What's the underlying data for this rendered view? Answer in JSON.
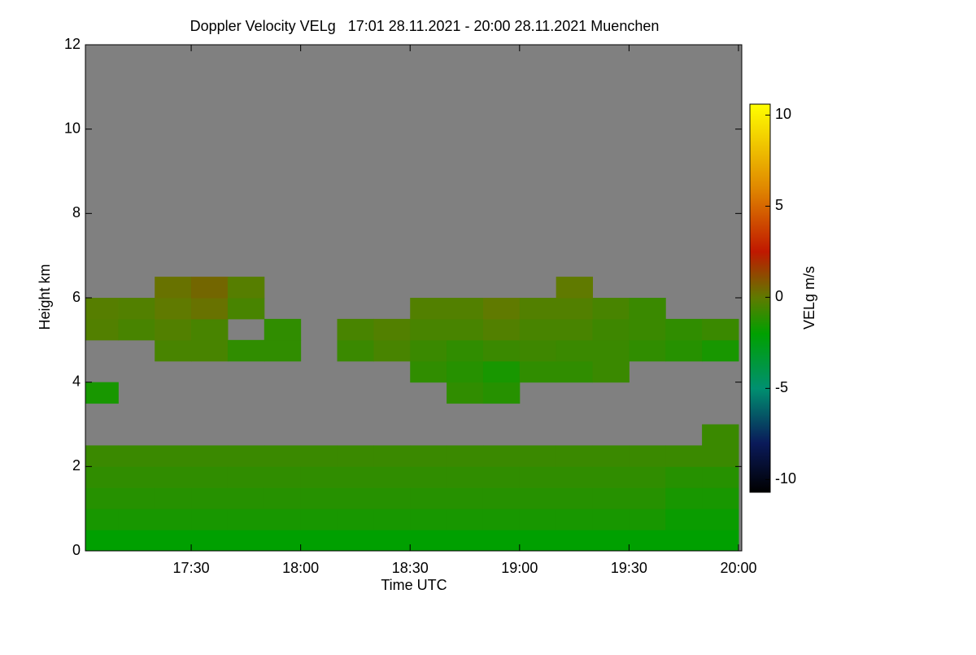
{
  "chart_data": {
    "type": "heatmap",
    "title": "Doppler Velocity VELg   17:01 28.11.2021 - 20:00 28.11.2021 Muenchen",
    "x_label": "Time UTC",
    "y_label": "Height km",
    "colorbar_label": "VELg m/s",
    "background": "#808080",
    "xlim": [
      17.0167,
      20.015
    ],
    "xticks": [
      {
        "value": 17.5,
        "label": "17:30"
      },
      {
        "value": 18,
        "label": "18:00"
      },
      {
        "value": 18.5,
        "label": "18:30"
      },
      {
        "value": 19,
        "label": "19:00"
      },
      {
        "value": 19.5,
        "label": "19:30"
      },
      {
        "value": 20,
        "label": "20:00"
      }
    ],
    "ylim": [
      0,
      12
    ],
    "yticks": [
      0,
      2,
      4,
      6,
      8,
      10,
      12
    ],
    "zlim": [
      -10.7,
      10.6
    ],
    "zticks": [
      -10,
      -5,
      0,
      5,
      10
    ],
    "colormap": [
      {
        "value": -10.7,
        "color": "#000000"
      },
      {
        "value": -8,
        "color": "#0a1a5a"
      },
      {
        "value": -5,
        "color": "#009070"
      },
      {
        "value": -2,
        "color": "#00a000"
      },
      {
        "value": 0,
        "color": "#607a00"
      },
      {
        "value": 2.5,
        "color": "#c01800"
      },
      {
        "value": 6,
        "color": "#e08800"
      },
      {
        "value": 10.6,
        "color": "#ffff00"
      }
    ],
    "x_edges": [
      17.0167,
      17.1667,
      17.3333,
      17.5,
      17.6667,
      17.8333,
      18.0,
      18.1667,
      18.3333,
      18.5,
      18.6667,
      18.8333,
      19.0,
      19.1667,
      19.3333,
      19.5,
      19.6667,
      19.8333,
      20.0
    ],
    "y_edges": [
      0,
      0.5,
      1,
      1.5,
      2,
      2.5,
      3,
      3.5,
      4,
      4.5,
      5,
      5.5,
      6,
      6.5,
      7,
      7.5,
      8,
      8.5,
      9,
      9.5,
      10,
      10.5,
      11,
      11.5,
      12
    ],
    "z": [
      [
        -2,
        -2,
        -2,
        -2,
        -2,
        -2,
        -2,
        -2,
        -2,
        -2,
        -2,
        -2,
        -2,
        -2,
        -2,
        -2,
        -2,
        -2
      ],
      [
        -1.5,
        -1.5,
        -1.5,
        -1.5,
        -1.5,
        -1.5,
        -1.5,
        -1.5,
        -1.5,
        -1.5,
        -1.5,
        -1.5,
        -1.5,
        -1.5,
        -1.5,
        -1.5,
        -1.8,
        -1.8
      ],
      [
        -1.2,
        -1.2,
        -1.2,
        -1.2,
        -1.2,
        -1.2,
        -1.2,
        -1.2,
        -1.2,
        -1.2,
        -1.2,
        -1.2,
        -1.2,
        -1.2,
        -1.2,
        -1.2,
        -1.5,
        -1.5
      ],
      [
        -1,
        -1,
        -1,
        -1,
        -1,
        -1,
        -1,
        -1,
        -1,
        -1,
        -1,
        -1,
        -1,
        -1,
        -1,
        -1,
        -1.2,
        -1.2
      ],
      [
        -0.8,
        -0.8,
        -0.8,
        -0.8,
        -0.8,
        -0.8,
        -0.8,
        -0.8,
        -0.8,
        -0.8,
        -0.8,
        -0.8,
        -0.8,
        -0.8,
        -0.8,
        -0.8,
        -0.8,
        -0.8
      ],
      [
        null,
        null,
        null,
        null,
        null,
        null,
        null,
        null,
        null,
        null,
        null,
        null,
        null,
        null,
        null,
        null,
        null,
        -0.8
      ],
      [
        null,
        null,
        null,
        null,
        null,
        null,
        null,
        null,
        null,
        null,
        null,
        null,
        null,
        null,
        null,
        null,
        null,
        null
      ],
      [
        -1.5,
        null,
        null,
        null,
        null,
        null,
        null,
        null,
        null,
        null,
        -1,
        -1.2,
        null,
        null,
        null,
        null,
        null,
        null
      ],
      [
        null,
        null,
        null,
        null,
        null,
        null,
        null,
        null,
        null,
        -1,
        -1.2,
        -1.5,
        -1,
        -1,
        -0.8,
        null,
        null,
        null
      ],
      [
        null,
        null,
        -0.5,
        -0.5,
        -1,
        -1,
        null,
        -0.8,
        -0.5,
        -0.8,
        -1,
        -0.8,
        -0.7,
        -0.8,
        -0.8,
        -1,
        -1.2,
        -1.5
      ],
      [
        -0.3,
        -0.5,
        -0.3,
        -0.5,
        null,
        -1,
        null,
        -0.5,
        -0.3,
        -0.5,
        -0.5,
        -0.3,
        -0.5,
        -0.5,
        -0.7,
        -0.8,
        -1,
        -0.8
      ],
      [
        -0.2,
        -0.3,
        0,
        0.2,
        -0.5,
        null,
        null,
        null,
        null,
        -0.3,
        -0.3,
        0,
        -0.3,
        -0.3,
        -0.5,
        -0.8,
        null,
        null
      ],
      [
        null,
        null,
        0.2,
        0.5,
        -0.2,
        null,
        null,
        null,
        null,
        null,
        null,
        null,
        null,
        0,
        null,
        null,
        null,
        null
      ],
      [
        null,
        null,
        null,
        null,
        null,
        null,
        null,
        null,
        null,
        null,
        null,
        null,
        null,
        null,
        null,
        null,
        null,
        null
      ],
      [
        null,
        null,
        null,
        null,
        null,
        null,
        null,
        null,
        null,
        null,
        null,
        null,
        null,
        null,
        null,
        null,
        null,
        null
      ],
      [
        null,
        null,
        null,
        null,
        null,
        null,
        null,
        null,
        null,
        null,
        null,
        null,
        null,
        null,
        null,
        null,
        null,
        null
      ],
      [
        null,
        null,
        null,
        null,
        null,
        null,
        null,
        null,
        null,
        null,
        null,
        null,
        null,
        null,
        null,
        null,
        null,
        null
      ],
      [
        null,
        null,
        null,
        null,
        null,
        null,
        null,
        null,
        null,
        null,
        null,
        null,
        null,
        null,
        null,
        null,
        null,
        null
      ],
      [
        null,
        null,
        null,
        null,
        null,
        null,
        null,
        null,
        null,
        null,
        null,
        null,
        null,
        null,
        null,
        null,
        null,
        null
      ],
      [
        null,
        null,
        null,
        null,
        null,
        null,
        null,
        null,
        null,
        null,
        null,
        null,
        null,
        null,
        null,
        null,
        null,
        null
      ],
      [
        null,
        null,
        null,
        null,
        null,
        null,
        null,
        null,
        null,
        null,
        null,
        null,
        null,
        null,
        null,
        null,
        null,
        null
      ],
      [
        null,
        null,
        null,
        null,
        null,
        null,
        null,
        null,
        null,
        null,
        null,
        null,
        null,
        null,
        null,
        null,
        null,
        null
      ],
      [
        null,
        null,
        null,
        null,
        null,
        null,
        null,
        null,
        null,
        null,
        null,
        null,
        null,
        null,
        null,
        null,
        null,
        null
      ],
      [
        null,
        null,
        null,
        null,
        null,
        null,
        null,
        null,
        null,
        null,
        null,
        null,
        null,
        null,
        null,
        null,
        null,
        null
      ]
    ]
  }
}
